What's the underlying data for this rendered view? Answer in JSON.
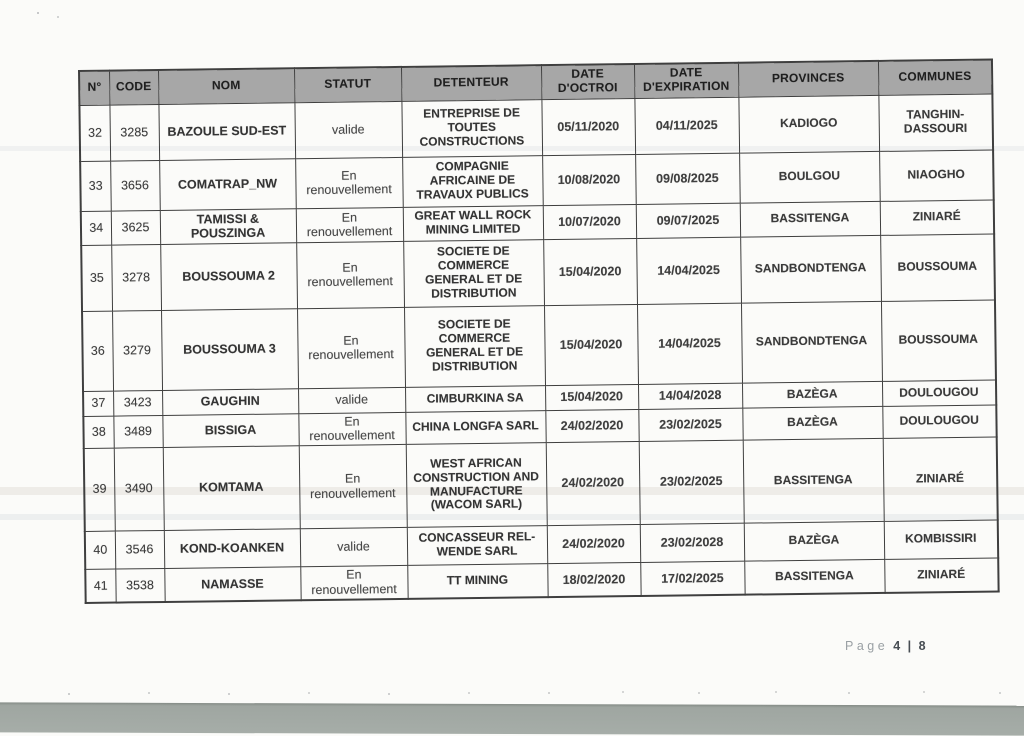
{
  "colors": {
    "header_bg": "#a7a7a7",
    "border": "#3f3f3f",
    "scanner_band": "#a6ada8",
    "footer_label": "#9aa0a4",
    "footer_value": "#474d53"
  },
  "document": {
    "table": {
      "headers": [
        "N°",
        "CODE",
        "NOM",
        "STATUT",
        "DETENTEUR",
        "DATE D'OCTROI",
        "DATE D'EXPIRATION",
        "PROVINCES",
        "COMMUNES"
      ],
      "rows": [
        {
          "n": "32",
          "code": "3285",
          "nom": "BAZOULE SUD-EST",
          "statut": "valide",
          "detenteur": "ENTREPRISE DE TOUTES CONSTRUCTIONS",
          "octroi": "05/11/2020",
          "expiration": "04/11/2025",
          "province": "KADIOGO",
          "commune": "TANGHIN-DASSOURI"
        },
        {
          "n": "33",
          "code": "3656",
          "nom": "COMATRAP_NW",
          "statut": "En renouvellement",
          "detenteur": "COMPAGNIE AFRICAINE DE TRAVAUX PUBLICS",
          "octroi": "10/08/2020",
          "expiration": "09/08/2025",
          "province": "BOULGOU",
          "commune": "NIAOGHO"
        },
        {
          "n": "34",
          "code": "3625",
          "nom": "TAMISSI & POUSZINGA",
          "statut": "En renouvellement",
          "detenteur": "GREAT WALL ROCK MINING LIMITED",
          "octroi": "10/07/2020",
          "expiration": "09/07/2025",
          "province": "BASSITENGA",
          "commune": "ZINIARÉ"
        },
        {
          "n": "35",
          "code": "3278",
          "nom": "BOUSSOUMA 2",
          "statut": "En renouvellement",
          "detenteur": "SOCIETE DE COMMERCE GENERAL ET DE DISTRIBUTION",
          "octroi": "15/04/2020",
          "expiration": "14/04/2025",
          "province": "SANDBONDTENGA",
          "commune": "BOUSSOUMA"
        },
        {
          "n": "36",
          "code": "3279",
          "nom": "BOUSSOUMA 3",
          "statut": "En renouvellement",
          "detenteur": "SOCIETE DE COMMERCE GENERAL ET DE DISTRIBUTION",
          "octroi": "15/04/2020",
          "expiration": "14/04/2025",
          "province": "SANDBONDTENGA",
          "commune": "BOUSSOUMA"
        },
        {
          "n": "37",
          "code": "3423",
          "nom": "GAUGHIN",
          "statut": "valide",
          "detenteur": "CIMBURKINA SA",
          "octroi": "15/04/2020",
          "expiration": "14/04/2028",
          "province": "BAZÈGA",
          "commune": "DOULOUGOU"
        },
        {
          "n": "38",
          "code": "3489",
          "nom": "BISSIGA",
          "statut": "En renouvellement",
          "detenteur": "CHINA LONGFA SARL",
          "octroi": "24/02/2020",
          "expiration": "23/02/2025",
          "province": "BAZÈGA",
          "commune": "DOULOUGOU"
        },
        {
          "n": "39",
          "code": "3490",
          "nom": "KOMTAMA",
          "statut": "En renouvellement",
          "detenteur": "WEST AFRICAN CONSTRUCTION AND MANUFACTURE (WACOM SARL)",
          "octroi": "24/02/2020",
          "expiration": "23/02/2025",
          "province": "BASSITENGA",
          "commune": "ZINIARÉ"
        },
        {
          "n": "40",
          "code": "3546",
          "nom": "KOND-KOANKEN",
          "statut": "valide",
          "detenteur": "CONCASSEUR REL-WENDE SARL",
          "octroi": "24/02/2020",
          "expiration": "23/02/2028",
          "province": "BAZÈGA",
          "commune": "KOMBISSIRI"
        },
        {
          "n": "41",
          "code": "3538",
          "nom": "NAMASSE",
          "statut": "En renouvellement",
          "detenteur": "TT MINING",
          "octroi": "18/02/2020",
          "expiration": "17/02/2025",
          "province": "BASSITENGA",
          "commune": "ZINIARÉ"
        }
      ]
    },
    "footer": {
      "page_label": "Page",
      "page_value": "4 | 8"
    }
  }
}
